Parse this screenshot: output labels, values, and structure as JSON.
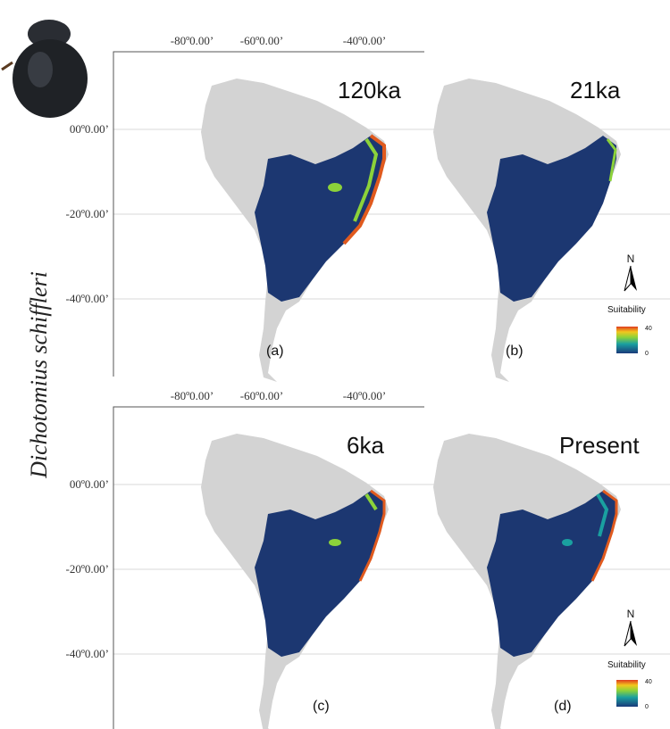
{
  "side_label": "Dichotomius schiffleri",
  "rows": [
    {
      "lon_labels": [
        "-80º0.00’",
        "-60º0.00’",
        "-40º0.00’"
      ],
      "lat_labels": [
        "00º0.00’",
        "-20º0.00’",
        "-40º0.00’"
      ],
      "panels": [
        {
          "period": "120ka",
          "letter": "(a)"
        },
        {
          "period": "21ka",
          "letter": "(b)"
        }
      ],
      "legend": {
        "north": "N",
        "title": "Suitability",
        "max": "40",
        "min": "0"
      }
    },
    {
      "lon_labels": [
        "-80º0.00’",
        "-60º0.00’",
        "-40º0.00’"
      ],
      "lat_labels": [
        "00º0.00’",
        "-20º0.00’",
        "-40º0.00’"
      ],
      "panels": [
        {
          "period": "6ka",
          "letter": "(c)"
        },
        {
          "period": "Present",
          "letter": "(d)"
        }
      ],
      "legend": {
        "north": "N",
        "title": "Suitability",
        "max": "40",
        "min": "0"
      }
    }
  ]
}
